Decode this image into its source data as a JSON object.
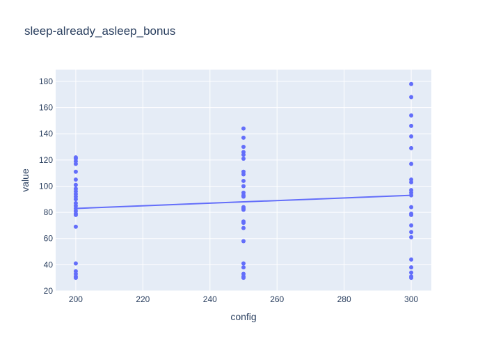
{
  "chart_data": {
    "type": "scatter",
    "title": "sleep-already_asleep_bonus",
    "xlabel": "config",
    "ylabel": "value",
    "xlim": [
      194,
      306
    ],
    "ylim": [
      20,
      189
    ],
    "xticks": [
      200,
      220,
      240,
      260,
      280,
      300
    ],
    "yticks": [
      20,
      40,
      60,
      80,
      100,
      120,
      140,
      160,
      180
    ],
    "grid": true,
    "legend": "none",
    "colors": {
      "marker": "#636efa",
      "line": "#636efa",
      "plot_bg": "#e5ecf6",
      "grid": "#ffffff",
      "text": "#2a3f5f"
    },
    "series": [
      {
        "type": "scatter",
        "points": [
          [
            200,
            122
          ],
          [
            200,
            121
          ],
          [
            200,
            119
          ],
          [
            200,
            117
          ],
          [
            200,
            111
          ],
          [
            200,
            105
          ],
          [
            200,
            101
          ],
          [
            200,
            98
          ],
          [
            200,
            96
          ],
          [
            200,
            94
          ],
          [
            200,
            92
          ],
          [
            200,
            90
          ],
          [
            200,
            87
          ],
          [
            200,
            85
          ],
          [
            200,
            83
          ],
          [
            200,
            81
          ],
          [
            200,
            79
          ],
          [
            200,
            78
          ],
          [
            200,
            69
          ],
          [
            200,
            41
          ],
          [
            200,
            35
          ],
          [
            200,
            33
          ],
          [
            200,
            31
          ],
          [
            200,
            30
          ],
          [
            250,
            144
          ],
          [
            250,
            137
          ],
          [
            250,
            130
          ],
          [
            250,
            126
          ],
          [
            250,
            124
          ],
          [
            250,
            121
          ],
          [
            250,
            111
          ],
          [
            250,
            109
          ],
          [
            250,
            104
          ],
          [
            250,
            100
          ],
          [
            250,
            95
          ],
          [
            250,
            93
          ],
          [
            250,
            92
          ],
          [
            250,
            84
          ],
          [
            250,
            83
          ],
          [
            250,
            82
          ],
          [
            250,
            73
          ],
          [
            250,
            72
          ],
          [
            250,
            68
          ],
          [
            250,
            58
          ],
          [
            250,
            41
          ],
          [
            250,
            38
          ],
          [
            250,
            33
          ],
          [
            250,
            31
          ],
          [
            250,
            30
          ],
          [
            300,
            178
          ],
          [
            300,
            168
          ],
          [
            300,
            154
          ],
          [
            300,
            146
          ],
          [
            300,
            138
          ],
          [
            300,
            129
          ],
          [
            300,
            117
          ],
          [
            300,
            105
          ],
          [
            300,
            103
          ],
          [
            300,
            97
          ],
          [
            300,
            95
          ],
          [
            300,
            93
          ],
          [
            300,
            84
          ],
          [
            300,
            79
          ],
          [
            300,
            78
          ],
          [
            300,
            70
          ],
          [
            300,
            65
          ],
          [
            300,
            61
          ],
          [
            300,
            44
          ],
          [
            300,
            38
          ],
          [
            300,
            34
          ],
          [
            300,
            31
          ],
          [
            300,
            30
          ]
        ]
      },
      {
        "type": "line",
        "points": [
          [
            200,
            83
          ],
          [
            300,
            93
          ]
        ]
      }
    ]
  }
}
